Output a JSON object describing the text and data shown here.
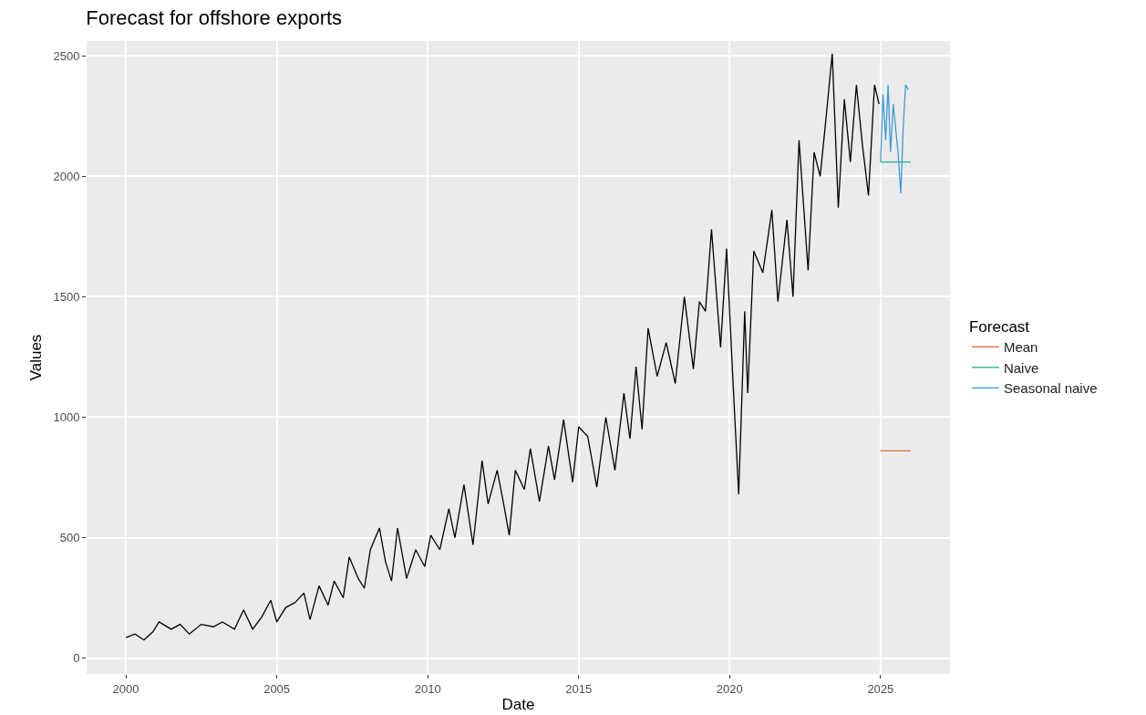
{
  "chart_data": {
    "type": "line",
    "title": "Forecast for offshore exports",
    "xlabel": "Date",
    "ylabel": "Values",
    "legend_title": "Forecast",
    "legend": "right",
    "grid": true,
    "line_style": "solid",
    "marker": "none",
    "xlim": [
      1998.7,
      2027.3
    ],
    "xticks": [
      2000,
      2005,
      2010,
      2015,
      2020,
      2025
    ],
    "ylim": [
      -66,
      2562
    ],
    "yticks": [
      0,
      500,
      1000,
      1500,
      2000,
      2500
    ],
    "series": [
      {
        "color": "#000000",
        "x": [
          2000,
          2000.3,
          2000.6,
          2000.9,
          2001.1,
          2001.5,
          2001.8,
          2002.1,
          2002.5,
          2002.9,
          2003.2,
          2003.6,
          2003.9,
          2004.2,
          2004.5,
          2004.8,
          2005.0,
          2005.3,
          2005.6,
          2005.9,
          2006.1,
          2006.4,
          2006.7,
          2006.9,
          2007.2,
          2007.4,
          2007.7,
          2007.9,
          2008.1,
          2008.4,
          2008.6,
          2008.8,
          2009.0,
          2009.3,
          2009.6,
          2009.9,
          2010.1,
          2010.4,
          2010.7,
          2010.9,
          2011.2,
          2011.5,
          2011.8,
          2012.0,
          2012.3,
          2012.5,
          2012.7,
          2012.9,
          2013.2,
          2013.4,
          2013.7,
          2014.0,
          2014.2,
          2014.5,
          2014.8,
          2015.0,
          2015.3,
          2015.6,
          2015.9,
          2016.2,
          2016.5,
          2016.7,
          2016.9,
          2017.1,
          2017.3,
          2017.6,
          2017.9,
          2018.2,
          2018.5,
          2018.8,
          2019.0,
          2019.2,
          2019.4,
          2019.7,
          2019.9,
          2020.1,
          2020.3,
          2020.5,
          2020.6,
          2020.8,
          2021.1,
          2021.4,
          2021.6,
          2021.9,
          2022.1,
          2022.3,
          2022.6,
          2022.8,
          2023.0,
          2023.2,
          2023.4,
          2023.6,
          2023.8,
          2024.0,
          2024.2,
          2024.4,
          2024.6,
          2024.8,
          2024.95
        ],
        "values": [
          85,
          100,
          75,
          110,
          150,
          120,
          140,
          100,
          140,
          130,
          150,
          120,
          200,
          120,
          170,
          240,
          150,
          210,
          230,
          270,
          160,
          300,
          220,
          320,
          250,
          420,
          330,
          290,
          450,
          540,
          400,
          320,
          540,
          330,
          450,
          380,
          510,
          450,
          620,
          500,
          720,
          470,
          820,
          640,
          780,
          650,
          510,
          780,
          700,
          870,
          650,
          880,
          740,
          990,
          730,
          960,
          920,
          710,
          1000,
          780,
          1100,
          910,
          1210,
          950,
          1370,
          1170,
          1310,
          1140,
          1500,
          1200,
          1480,
          1440,
          1780,
          1290,
          1700,
          1180,
          680,
          1440,
          1100,
          1690,
          1600,
          1860,
          1480,
          1820,
          1500,
          2150,
          1610,
          2100,
          2000,
          2250,
          2510,
          1870,
          2320,
          2060,
          2380,
          2130,
          1920,
          2380,
          2300
        ]
      },
      {
        "name": "Mean",
        "color": "#e0673f",
        "x": [
          2025.0,
          2026.0
        ],
        "values": [
          860,
          860
        ]
      },
      {
        "name": "Naive",
        "color": "#1fae84",
        "x": [
          2025.0,
          2026.0
        ],
        "values": [
          2060,
          2060
        ]
      },
      {
        "name": "Seasonal naive",
        "color": "#3d9bd9",
        "x": [
          2025.0,
          2025.08,
          2025.17,
          2025.25,
          2025.33,
          2025.42,
          2025.5,
          2025.58,
          2025.67,
          2025.75,
          2025.83,
          2025.92
        ],
        "values": [
          2060,
          2340,
          2150,
          2380,
          2100,
          2300,
          2200,
          2100,
          1930,
          2200,
          2380,
          2360
        ]
      }
    ]
  }
}
